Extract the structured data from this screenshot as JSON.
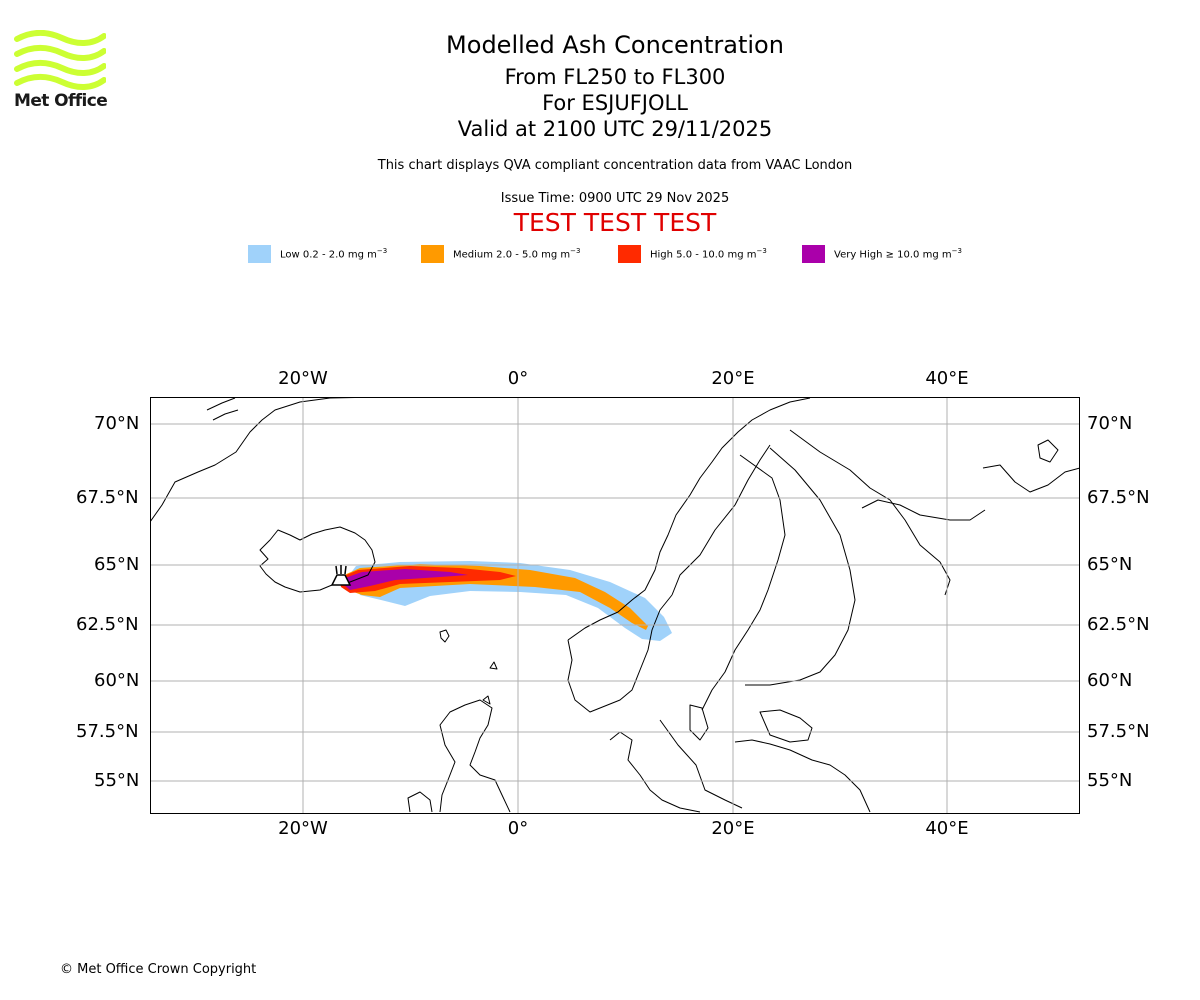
{
  "logo": {
    "brand": "Met Office",
    "icon": "met-office-wave-logo",
    "color": "#ccff33"
  },
  "title": {
    "main": "Modelled Ash Concentration",
    "levels": "From FL250 to FL300",
    "volcano": "For ESJUFJOLL",
    "valid": "Valid at 2100 UTC 29/11/2025"
  },
  "description": "This chart displays QVA compliant concentration data from VAAC London",
  "issue_time": "Issue Time: 0900 UTC 29 Nov 2025",
  "test_banner": "TEST TEST TEST",
  "legend": [
    {
      "label": "Low 0.2 - 2.0 mg m",
      "unit_exp": "−3",
      "color": "#a0d2fa"
    },
    {
      "label": "Medium 2.0 - 5.0 mg m",
      "unit_exp": "−3",
      "color": "#ff9a00"
    },
    {
      "label": "High 5.0 - 10.0 mg m",
      "unit_exp": "−3",
      "color": "#ff2a00"
    },
    {
      "label": "Very High ≥ 10.0 mg m",
      "unit_exp": "−3",
      "color": "#aa00aa"
    }
  ],
  "map": {
    "lon_labels": [
      "20°W",
      "0°",
      "20°E",
      "40°E"
    ],
    "lat_labels": [
      "70°N",
      "67.5°N",
      "65°N",
      "62.5°N",
      "60°N",
      "57.5°N",
      "55°N"
    ],
    "volcano_marker": "volcano-icon"
  },
  "copyright": "© Met Office Crown Copyright"
}
